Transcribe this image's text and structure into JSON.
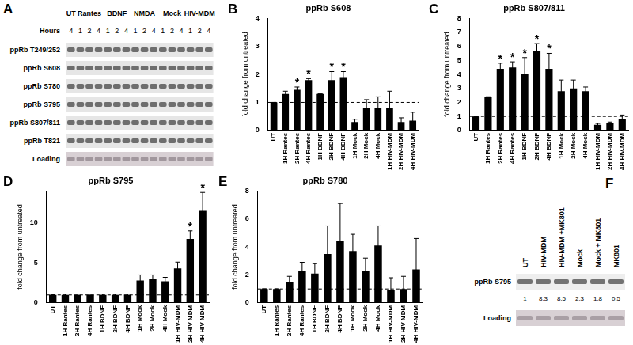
{
  "chart_data": [
    {
      "panel": "B",
      "type": "bar",
      "title": "ppRb S608",
      "y_label": "fold change from untreated",
      "categories": [
        "UT",
        "1H Rantes",
        "2H Rantes",
        "4H Rantes",
        "1H BDNF",
        "2H BDNF",
        "4H BDNF",
        "1H Mock",
        "2H Mock",
        "4H Mock",
        "1H HIV-MDM",
        "2H HIV-MDM",
        "4H HIV-MDM"
      ],
      "values": [
        1,
        1.3,
        1.45,
        1.8,
        1.3,
        1.8,
        1.9,
        0.3,
        0.8,
        0.8,
        0.8,
        0.3,
        0.35
      ],
      "errors": [
        0,
        0.1,
        0.1,
        0.05,
        0,
        0.3,
        0.2,
        0.1,
        0.3,
        0.4,
        0.6,
        0.15,
        0.3
      ],
      "color": "#000000",
      "baseline": 1,
      "annotations": [
        {
          "text": "*",
          "category": "2H Rantes"
        },
        {
          "text": "*",
          "category": "4H Rantes"
        },
        {
          "text": "*",
          "category": "2H BDNF"
        },
        {
          "text": "*",
          "category": "4H BDNF"
        }
      ],
      "ylim": [
        0,
        4
      ],
      "yticks": [
        0,
        1,
        2,
        3,
        4
      ],
      "grid": false
    },
    {
      "panel": "C",
      "type": "bar",
      "title": "ppRb S807/811",
      "y_label": "fold change from untreated",
      "categories": [
        "UT",
        "1H Rantes",
        "2H Rantes",
        "4H Rantes",
        "1H BDNF",
        "2H BDNF",
        "4H BDNF",
        "1H Mock",
        "2H Mock",
        "4H Mock",
        "1H HIV-MDM",
        "2H HIV-MDM",
        "4H HIV-MDM"
      ],
      "values": [
        1,
        2.4,
        4.4,
        4.5,
        4.0,
        5.7,
        4.4,
        2.8,
        3.0,
        2.8,
        0.4,
        0.5,
        0.8
      ],
      "errors": [
        0,
        0,
        0.4,
        0.4,
        1.2,
        0.5,
        1.1,
        0.8,
        0.6,
        0.3,
        0.1,
        0.1,
        0.3
      ],
      "color": "#000000",
      "baseline": 1,
      "annotations": [
        {
          "text": "*",
          "category": "2H Rantes"
        },
        {
          "text": "*",
          "category": "4H Rantes"
        },
        {
          "text": "*",
          "category": "1H BDNF"
        },
        {
          "text": "*",
          "category": "2H BDNF"
        },
        {
          "text": "*",
          "category": "4H BDNF"
        }
      ],
      "ylim": [
        0,
        8
      ],
      "yticks": [
        0,
        1,
        2,
        3,
        4,
        5,
        6,
        7,
        8
      ],
      "grid": false
    },
    {
      "panel": "D",
      "type": "bar",
      "title": "ppRb S795",
      "y_label": "fold change from untreated",
      "categories": [
        "UT",
        "1H Rantes",
        "2H Rantes",
        "4H Rantes",
        "1H BDNF",
        "2H BDNF",
        "4H BDNF",
        "1H Mock",
        "2H Mock",
        "4H Mock",
        "1H HIV-MDM",
        "2H HIV-MDM",
        "4H HIV-MDM"
      ],
      "values": [
        1,
        1,
        1,
        1,
        1,
        1,
        1,
        2.8,
        3.0,
        2.7,
        4.3,
        8.0,
        11.5
      ],
      "errors": [
        0,
        0.1,
        0.1,
        0.1,
        0.1,
        0.1,
        0.1,
        0.7,
        0.5,
        0.5,
        0.8,
        1.0,
        2.3
      ],
      "color": "#000000",
      "baseline": 1,
      "annotations": [
        {
          "text": "*",
          "category": "2H HIV-MDM"
        },
        {
          "text": "*",
          "category": "4H HIV-MDM"
        }
      ],
      "ylim": [
        0,
        14
      ],
      "yticks": [
        0,
        5,
        10
      ],
      "grid": false
    },
    {
      "panel": "E",
      "type": "bar",
      "title": "ppRb S780",
      "y_label": "fold change from untreated",
      "categories": [
        "UT",
        "1H Rantes",
        "2H Rantes",
        "4H Rantes",
        "1H BDNF",
        "2H BDNF",
        "4H BDNF",
        "1H Mock",
        "2H Mock",
        "4H Mock",
        "1H HIV-MDM",
        "2H HIV-MDM",
        "4H HIV-MDM"
      ],
      "values": [
        1,
        1.0,
        1.5,
        2.3,
        2.1,
        3.5,
        4.4,
        3.7,
        2.3,
        4.1,
        0.9,
        1.0,
        2.4
      ],
      "errors": [
        0,
        0,
        0.4,
        0.6,
        0.7,
        2.0,
        2.7,
        1.2,
        0.9,
        1.4,
        0.9,
        0.9,
        2.2
      ],
      "color": "#000000",
      "baseline": 1,
      "annotations": [],
      "ylim": [
        0,
        8
      ],
      "yticks": [
        0,
        2,
        4,
        6,
        8
      ],
      "grid": false
    }
  ],
  "blots": [
    {
      "panel": "A",
      "groups": [
        "UT",
        "Rantes",
        "BDNF",
        "NMDA",
        "Mock",
        "HIV-MDM"
      ],
      "hours_label": "Hours",
      "hours": [
        [
          "4"
        ],
        [
          "1",
          "2",
          "4"
        ],
        [
          "1",
          "2",
          "4"
        ],
        [
          "1",
          "2",
          "4"
        ],
        [
          "1",
          "2",
          "4"
        ],
        [
          "1",
          "2",
          "4"
        ]
      ],
      "rows": [
        "ppRb T249/252",
        "ppRb S608",
        "ppRb S780",
        "ppRb S795",
        "ppRb S807/811",
        "ppRb T821",
        "Loading"
      ]
    },
    {
      "panel": "F",
      "lanes": [
        "UT",
        "HIV-MDM",
        "HIV-MDM +MK801",
        "Mock",
        "Mock + MK801",
        "MK801"
      ],
      "quantification": [
        1,
        8.3,
        8.5,
        2.3,
        1.8,
        0.5
      ],
      "rows": [
        "ppRb S795",
        "Loading"
      ]
    }
  ]
}
